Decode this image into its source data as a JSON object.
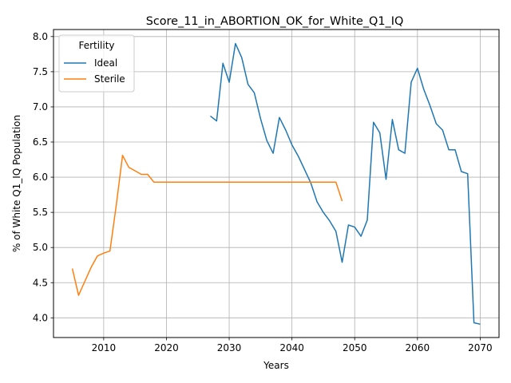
{
  "chart_data": {
    "type": "line",
    "title": "Score_11_in_ABORTION_OK_for_White_Q1_IQ",
    "xlabel": "Years",
    "ylabel": "% of White Q1_IQ Population",
    "xlim": [
      2002,
      2073
    ],
    "ylim": [
      3.72,
      8.1
    ],
    "xticks": [
      2010,
      2020,
      2030,
      2040,
      2050,
      2060,
      2070
    ],
    "yticks": [
      4.0,
      4.5,
      5.0,
      5.5,
      6.0,
      6.5,
      7.0,
      7.5,
      8.0
    ],
    "xtick_labels": [
      "2010",
      "2020",
      "2030",
      "2040",
      "2050",
      "2060",
      "2070"
    ],
    "ytick_labels": [
      "4.0",
      "4.5",
      "5.0",
      "5.5",
      "6.0",
      "6.5",
      "7.0",
      "7.5",
      "8.0"
    ],
    "grid": true,
    "legend": {
      "title": "Fertility",
      "position": "top-left"
    },
    "series": [
      {
        "name": "Ideal",
        "color": "#1f77b4",
        "x": [
          2027,
          2028,
          2029,
          2030,
          2031,
          2032,
          2033,
          2034,
          2035,
          2036,
          2037,
          2038,
          2039,
          2040,
          2041,
          2042,
          2043,
          2044,
          2045,
          2046,
          2047,
          2048,
          2049,
          2050,
          2051,
          2052,
          2053,
          2054,
          2055,
          2056,
          2057,
          2058,
          2059,
          2060,
          2061,
          2062,
          2063,
          2064,
          2065,
          2066,
          2067,
          2068,
          2069,
          2070
        ],
        "y": [
          6.87,
          6.8,
          7.62,
          7.35,
          7.9,
          7.7,
          7.32,
          7.2,
          6.83,
          6.52,
          6.34,
          6.85,
          6.67,
          6.46,
          6.3,
          6.11,
          5.92,
          5.65,
          5.5,
          5.38,
          5.23,
          4.79,
          5.32,
          5.29,
          5.16,
          5.39,
          6.78,
          6.63,
          5.97,
          6.82,
          6.39,
          6.34,
          7.35,
          7.55,
          7.25,
          7.02,
          6.76,
          6.67,
          6.39,
          6.39,
          6.08,
          6.05,
          3.93,
          3.91
        ]
      },
      {
        "name": "Sterile",
        "color": "#ff7f0e",
        "x": [
          2005,
          2006,
          2007,
          2008,
          2009,
          2010,
          2011,
          2012,
          2013,
          2014,
          2015,
          2016,
          2017,
          2018,
          2019,
          2020,
          2021,
          2022,
          2023,
          2024,
          2025,
          2026,
          2027,
          2028,
          2029,
          2030,
          2031,
          2032,
          2033,
          2034,
          2035,
          2036,
          2037,
          2038,
          2039,
          2040,
          2041,
          2042,
          2043,
          2044,
          2045,
          2046,
          2047,
          2048
        ],
        "y": [
          4.7,
          4.32,
          4.52,
          4.72,
          4.88,
          4.92,
          4.95,
          5.6,
          6.31,
          6.14,
          6.09,
          6.04,
          6.04,
          5.93,
          5.93,
          5.93,
          5.93,
          5.93,
          5.93,
          5.93,
          5.93,
          5.93,
          5.93,
          5.93,
          5.93,
          5.93,
          5.93,
          5.93,
          5.93,
          5.93,
          5.93,
          5.93,
          5.93,
          5.93,
          5.93,
          5.93,
          5.93,
          5.93,
          5.93,
          5.93,
          5.93,
          5.93,
          5.93,
          5.66
        ]
      }
    ]
  }
}
